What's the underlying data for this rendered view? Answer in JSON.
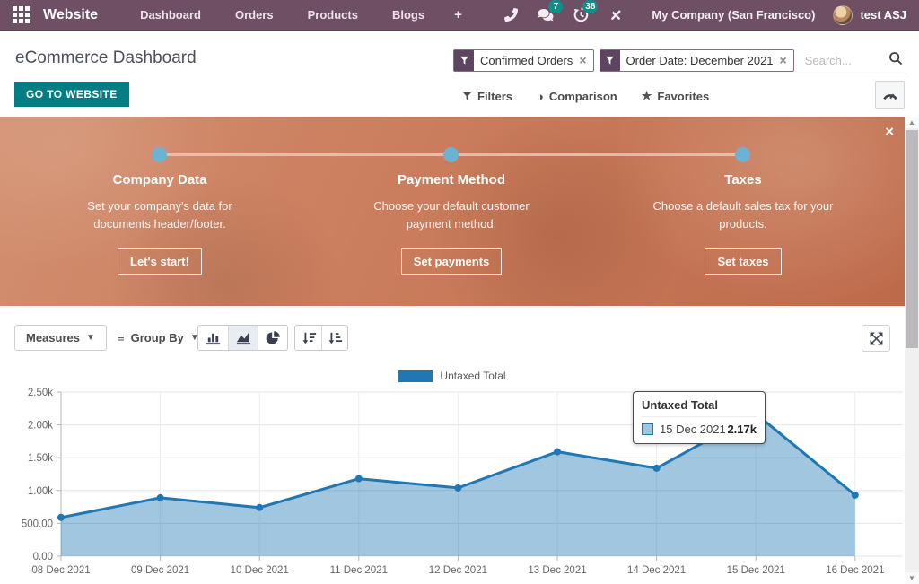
{
  "navbar": {
    "brand": "Website",
    "menu_items": [
      "Dashboard",
      "Orders",
      "Products",
      "Blogs"
    ],
    "plus": "+",
    "messages_badge": "7",
    "activities_badge": "38",
    "company": "My Company (San Francisco)",
    "user": "test ASJ"
  },
  "control_panel": {
    "title": "eCommerce Dashboard",
    "go_to_website": "GO TO WEBSITE",
    "facets": [
      {
        "label": "Confirmed Orders"
      },
      {
        "label": "Order Date: December 2021"
      }
    ],
    "facet_remove": "×",
    "search_placeholder": "Search...",
    "filter_menus": {
      "filters": "Filters",
      "comparison": "Comparison",
      "favorites": "Favorites"
    }
  },
  "onboarding": {
    "close": "×",
    "steps": [
      {
        "title": "Company Data",
        "description": "Set your company's data for documents header/footer.",
        "button": "Let's start!"
      },
      {
        "title": "Payment Method",
        "description": "Choose your default customer payment method.",
        "button": "Set payments"
      },
      {
        "title": "Taxes",
        "description": "Choose a default sales tax for your products.",
        "button": "Set taxes"
      }
    ]
  },
  "toolbar": {
    "measures": "Measures",
    "group_by": "Group By"
  },
  "chart_data": {
    "type": "area",
    "title": "",
    "x": [
      "08 Dec 2021",
      "09 Dec 2021",
      "10 Dec 2021",
      "11 Dec 2021",
      "12 Dec 2021",
      "13 Dec 2021",
      "14 Dec 2021",
      "15 Dec 2021",
      "16 Dec 2021"
    ],
    "series": [
      {
        "name": "Untaxed Total",
        "color": "#1f77b4",
        "fill": "rgba(31,119,180,0.42)",
        "values": [
          590,
          890,
          740,
          1180,
          1040,
          1590,
          1340,
          2170,
          930
        ]
      }
    ],
    "ylim": [
      0,
      2500
    ],
    "yticks": [
      {
        "value": 0,
        "label": "0.00"
      },
      {
        "value": 500,
        "label": "500.00"
      },
      {
        "value": 1000,
        "label": "1.00k"
      },
      {
        "value": 1500,
        "label": "1.50k"
      },
      {
        "value": 2000,
        "label": "2.00k"
      },
      {
        "value": 2500,
        "label": "2.50k"
      }
    ],
    "grid": true,
    "legend_position": "top",
    "tooltip": {
      "title": "Untaxed Total",
      "row_label": "15 Dec 2021",
      "row_value": "2.17k",
      "point_index": 7
    }
  },
  "colors": {
    "navbar_bg": "#6e4f63",
    "accent_teal": "#017e84",
    "badge_teal": "#0f8f8c",
    "chip_purple": "#5d4460",
    "banner_dot_blue": "#6cb2d3",
    "chart_line_blue": "#1f77b4"
  }
}
